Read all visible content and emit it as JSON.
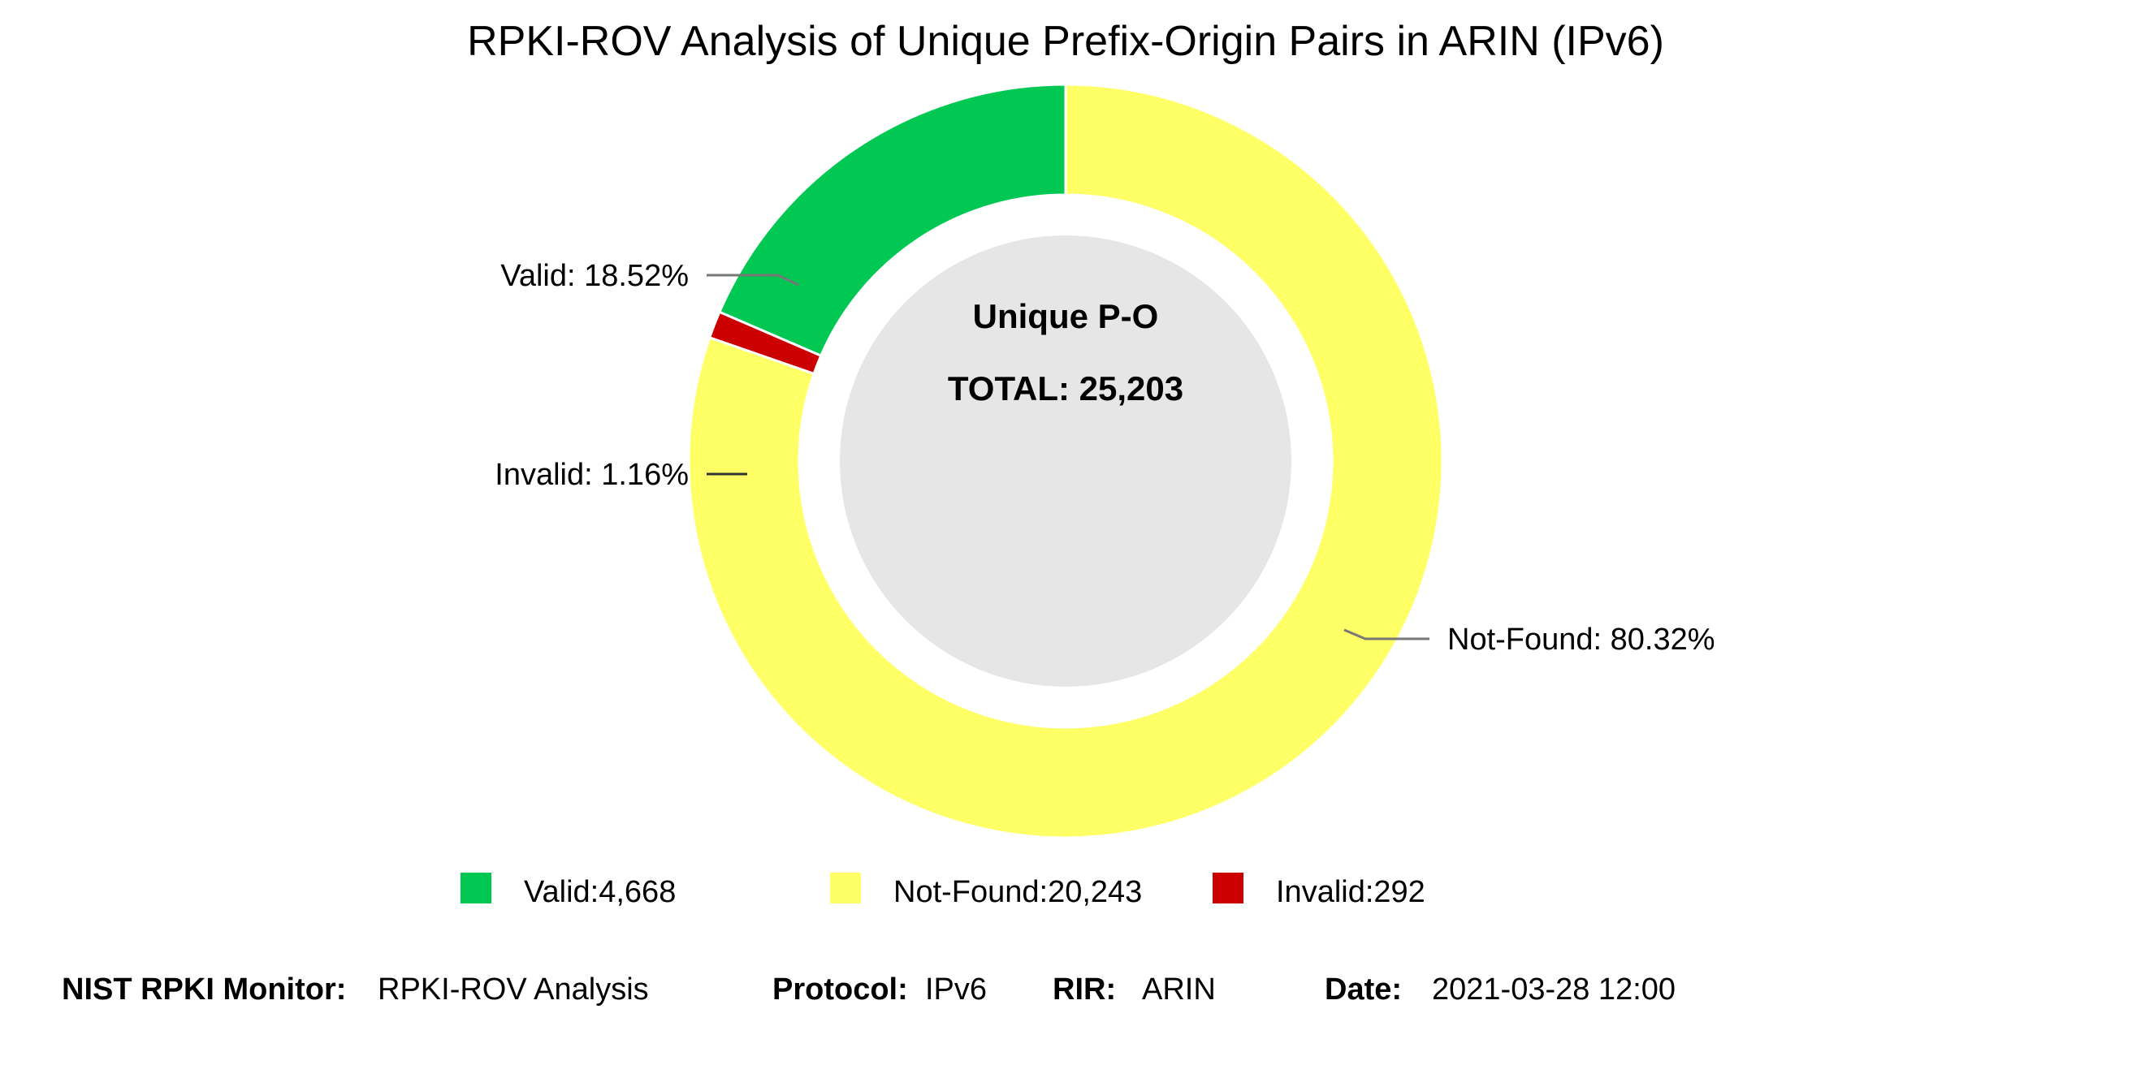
{
  "chart_data": {
    "type": "pie",
    "title": "RPKI-ROV Analysis of Unique Prefix-Origin Pairs in ARIN (IPv6)",
    "center": {
      "line1": "Unique P-O",
      "line2": "TOTAL: 25,203"
    },
    "slices": [
      {
        "name": "Valid",
        "value": 4668,
        "percent": 18.52,
        "color": "#00c853",
        "label": "Valid: 18.52%",
        "legend": "Valid:4,668"
      },
      {
        "name": "Not-Found",
        "value": 20243,
        "percent": 80.32,
        "color": "#ffff66",
        "label": "Not-Found: 80.32%",
        "legend": "Not-Found:20,243"
      },
      {
        "name": "Invalid",
        "value": 292,
        "percent": 1.16,
        "color": "#cc0000",
        "label": "Invalid: 1.16%",
        "legend": "Invalid:292"
      }
    ],
    "center_fill": "#e6e6e6"
  },
  "footer": {
    "monitor_key": "NIST RPKI Monitor:",
    "monitor_value": "RPKI-ROV Analysis",
    "protocol_key": "Protocol:",
    "protocol_value": "IPv6",
    "rir_key": "RIR:",
    "rir_value": "ARIN",
    "date_key": "Date:",
    "date_value": "2021-03-28 12:00"
  }
}
